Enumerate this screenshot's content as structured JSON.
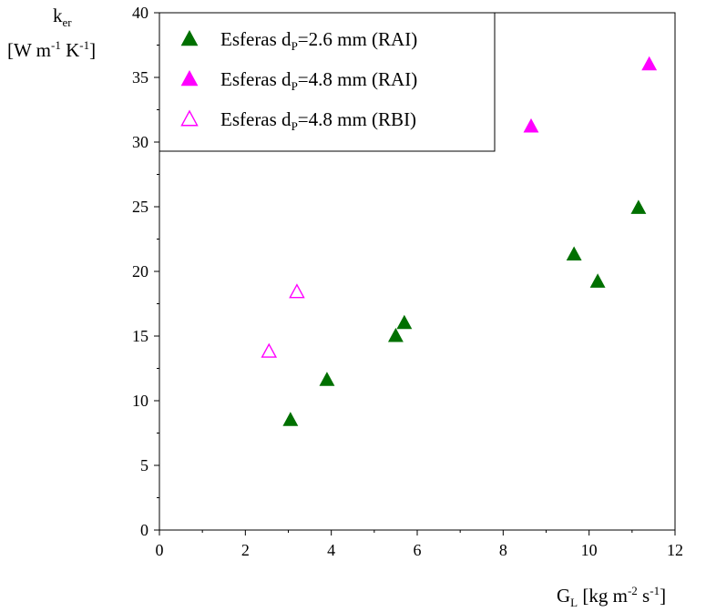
{
  "chart_data": {
    "type": "scatter",
    "xlabel": {
      "base": "G",
      "sub": "L",
      "unit": "[kg m",
      "exp1": "-2",
      "mid": " s",
      "exp2": "-1",
      "end": "]"
    },
    "ylabel": {
      "base": "k",
      "sub": "er",
      "line2_start": "[W m",
      "exp1": "-1",
      "mid": " K",
      "exp2": "-1",
      "end": "]"
    },
    "xlim": [
      0,
      12
    ],
    "ylim": [
      0,
      40
    ],
    "xticks": [
      0,
      2,
      4,
      6,
      8,
      10,
      12
    ],
    "yticks": [
      0,
      5,
      10,
      15,
      20,
      25,
      30,
      35,
      40
    ],
    "grid": false,
    "legend_position": "top-left",
    "series": [
      {
        "name": "Esferas dP=2.6 mm (RAI)",
        "legend_parts": {
          "pre": "Esferas d",
          "sub": "P",
          "post": "=2.6 mm (RAI)"
        },
        "marker": "triangle-filled",
        "color": "#007000",
        "points": [
          [
            3.05,
            8.5
          ],
          [
            3.9,
            11.6
          ],
          [
            5.5,
            15.0
          ],
          [
            5.7,
            16.0
          ],
          [
            9.65,
            21.3
          ],
          [
            10.2,
            19.2
          ],
          [
            11.15,
            24.9
          ]
        ]
      },
      {
        "name": "Esferas dP=4.8 mm (RAI)",
        "legend_parts": {
          "pre": "Esferas d",
          "sub": "P",
          "post": "=4.8 mm (RAI)"
        },
        "marker": "triangle-filled",
        "color": "#ff00ff",
        "points": [
          [
            8.65,
            31.2
          ],
          [
            11.4,
            36.0
          ]
        ]
      },
      {
        "name": "Esferas dP=4.8 mm (RBI)",
        "legend_parts": {
          "pre": "Esferas d",
          "sub": "P",
          "post": "=4.8 mm (RBI)"
        },
        "marker": "triangle-open",
        "color": "#ff00ff",
        "points": [
          [
            2.55,
            13.8
          ],
          [
            3.2,
            18.4
          ]
        ]
      }
    ]
  }
}
